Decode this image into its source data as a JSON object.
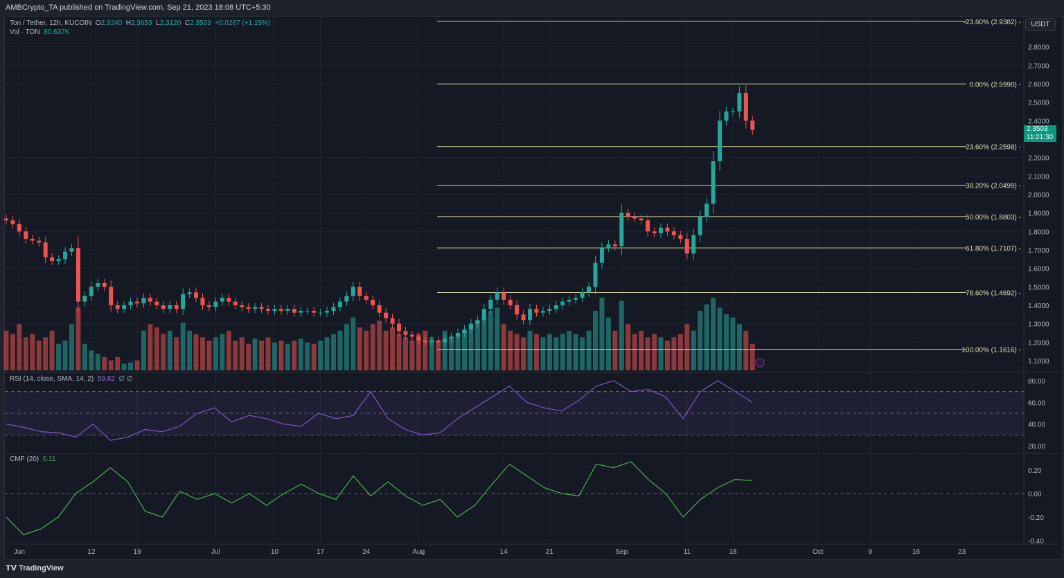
{
  "header": {
    "published": "AMBCrypto_TA published on TradingView.com, Sep 21, 2023 18:08 UTC+5:30"
  },
  "symbol": {
    "title": "Ton / Tether, 12h, KUCOIN",
    "o_label": "O",
    "o": "2.3240",
    "h_label": "H",
    "h": "2.3653",
    "l_label": "L",
    "l": "2.3120",
    "c_label": "C",
    "c": "2.3503",
    "change": "+0.0267 (+1.15%)",
    "vol_label": "Vol · TON",
    "vol": "80.637K"
  },
  "currency": "USDT",
  "last_price": {
    "value": "2.3503",
    "countdown": "11:21:30"
  },
  "rsi": {
    "label": "RSI (14, close, SMA, 14, 2)",
    "value": "59.82",
    "extra": "∅ ∅"
  },
  "cmf": {
    "label": "CMF (20)",
    "value": "0.11"
  },
  "footer": {
    "brand": "TradingView"
  },
  "colors": {
    "up": "#26a69a",
    "down": "#ef5350",
    "fib": "#d6d3a0",
    "rsi": "#7e57c2",
    "cmf": "#4caf50"
  },
  "chart_data": {
    "type": "candlestick",
    "start_date": "May 30",
    "interval": "1 bar per day (approx.)",
    "closes": [
      1.86,
      1.84,
      1.8,
      1.76,
      1.75,
      1.74,
      1.66,
      1.64,
      1.65,
      1.69,
      1.71,
      1.42,
      1.45,
      1.5,
      1.52,
      1.5,
      1.4,
      1.38,
      1.4,
      1.42,
      1.41,
      1.44,
      1.42,
      1.4,
      1.38,
      1.4,
      1.38,
      1.46,
      1.47,
      1.44,
      1.4,
      1.39,
      1.42,
      1.44,
      1.42,
      1.4,
      1.39,
      1.38,
      1.39,
      1.38,
      1.37,
      1.38,
      1.37,
      1.38,
      1.36,
      1.37,
      1.37,
      1.36,
      1.36,
      1.37,
      1.39,
      1.42,
      1.45,
      1.5,
      1.45,
      1.43,
      1.4,
      1.36,
      1.33,
      1.3,
      1.26,
      1.24,
      1.23,
      1.21,
      1.2,
      1.21,
      1.2,
      1.22,
      1.23,
      1.25,
      1.27,
      1.3,
      1.32,
      1.38,
      1.43,
      1.47,
      1.43,
      1.4,
      1.35,
      1.32,
      1.38,
      1.36,
      1.37,
      1.38,
      1.4,
      1.42,
      1.43,
      1.44,
      1.47,
      1.5,
      1.63,
      1.71,
      1.73,
      1.72,
      1.9,
      1.88,
      1.87,
      1.86,
      1.8,
      1.79,
      1.82,
      1.8,
      1.78,
      1.76,
      1.68,
      1.78,
      1.88,
      1.95,
      2.18,
      2.4,
      2.45,
      2.45,
      2.55,
      2.4,
      2.35
    ],
    "volume": [
      60,
      55,
      70,
      50,
      55,
      45,
      50,
      60,
      40,
      45,
      70,
      95,
      40,
      30,
      25,
      20,
      15,
      20,
      10,
      12,
      15,
      60,
      70,
      65,
      55,
      60,
      50,
      72,
      60,
      55,
      50,
      45,
      50,
      55,
      60,
      45,
      50,
      40,
      48,
      45,
      50,
      42,
      45,
      40,
      45,
      48,
      42,
      40,
      45,
      50,
      55,
      60,
      70,
      80,
      65,
      60,
      70,
      75,
      60,
      65,
      55,
      50,
      45,
      55,
      60,
      50,
      45,
      60,
      50,
      55,
      60,
      70,
      75,
      80,
      90,
      95,
      70,
      60,
      55,
      50,
      60,
      55,
      50,
      55,
      50,
      55,
      60,
      55,
      50,
      60,
      90,
      110,
      80,
      60,
      105,
      70,
      55,
      60,
      50,
      55,
      50,
      45,
      50,
      55,
      70,
      60,
      90,
      100,
      110,
      95,
      85,
      80,
      70,
      60,
      40
    ],
    "price_axis": [
      "2.8000",
      "2.7000",
      "2.6000",
      "2.5000",
      "2.4000",
      "2.2000",
      "2.1000",
      "2.0000",
      "1.9000",
      "1.8000",
      "1.7000",
      "1.6000",
      "1.5000",
      "1.4000",
      "1.3000",
      "1.2000",
      "1.1000"
    ],
    "fib_levels": [
      {
        "label": "-23.60% (2.9382)",
        "price": 2.9382
      },
      {
        "label": "0.00% (2.5990)",
        "price": 2.599
      },
      {
        "label": "23.60% (2.2598)",
        "price": 2.2598
      },
      {
        "label": "38.20% (2.0499)",
        "price": 2.0499
      },
      {
        "label": "50.00% (1.8803)",
        "price": 1.8803
      },
      {
        "label": "61.80% (1.7107)",
        "price": 1.7107
      },
      {
        "label": "78.60% (1.4692)",
        "price": 1.4692
      },
      {
        "label": "100.00% (1.1616)",
        "price": 1.1616
      }
    ],
    "rsi_series": [
      40,
      37,
      33,
      32,
      28,
      40,
      25,
      28,
      35,
      33,
      38,
      50,
      55,
      42,
      48,
      45,
      40,
      38,
      50,
      45,
      48,
      70,
      45,
      35,
      30,
      32,
      45,
      55,
      65,
      75,
      60,
      55,
      52,
      62,
      75,
      80,
      70,
      72,
      65,
      45,
      70,
      80,
      70,
      60
    ],
    "rsi_axis": [
      "80.00",
      "60.00",
      "40.00",
      "20.00"
    ],
    "cmf_series": [
      -0.2,
      -0.35,
      -0.3,
      -0.2,
      0.0,
      0.1,
      0.22,
      0.1,
      -0.15,
      -0.2,
      0.02,
      -0.05,
      0.0,
      -0.08,
      0.0,
      -0.1,
      0.0,
      0.08,
      0.0,
      -0.05,
      0.15,
      -0.02,
      0.1,
      -0.02,
      -0.1,
      -0.05,
      -0.2,
      -0.1,
      0.08,
      0.25,
      0.15,
      0.05,
      0.0,
      -0.02,
      0.25,
      0.22,
      0.27,
      0.12,
      0.0,
      -0.2,
      -0.05,
      0.05,
      0.12,
      0.11
    ],
    "cmf_axis": [
      "0.20",
      "0.00",
      "-0.20",
      "-0.40"
    ],
    "x_ticks": [
      {
        "label": "Jun",
        "day": 2
      },
      {
        "label": "12",
        "day": 13
      },
      {
        "label": "19",
        "day": 20
      },
      {
        "label": "Jul",
        "day": 32
      },
      {
        "label": "10",
        "day": 41
      },
      {
        "label": "17",
        "day": 48
      },
      {
        "label": "24",
        "day": 55
      },
      {
        "label": "Aug",
        "day": 63
      },
      {
        "label": "14",
        "day": 76
      },
      {
        "label": "21",
        "day": 83
      },
      {
        "label": "Sep",
        "day": 94
      },
      {
        "label": "11",
        "day": 104
      },
      {
        "label": "18",
        "day": 111
      },
      {
        "label": "Oct",
        "day": 124
      },
      {
        "label": "9",
        "day": 132
      },
      {
        "label": "16",
        "day": 139
      },
      {
        "label": "23",
        "day": 146
      }
    ]
  }
}
